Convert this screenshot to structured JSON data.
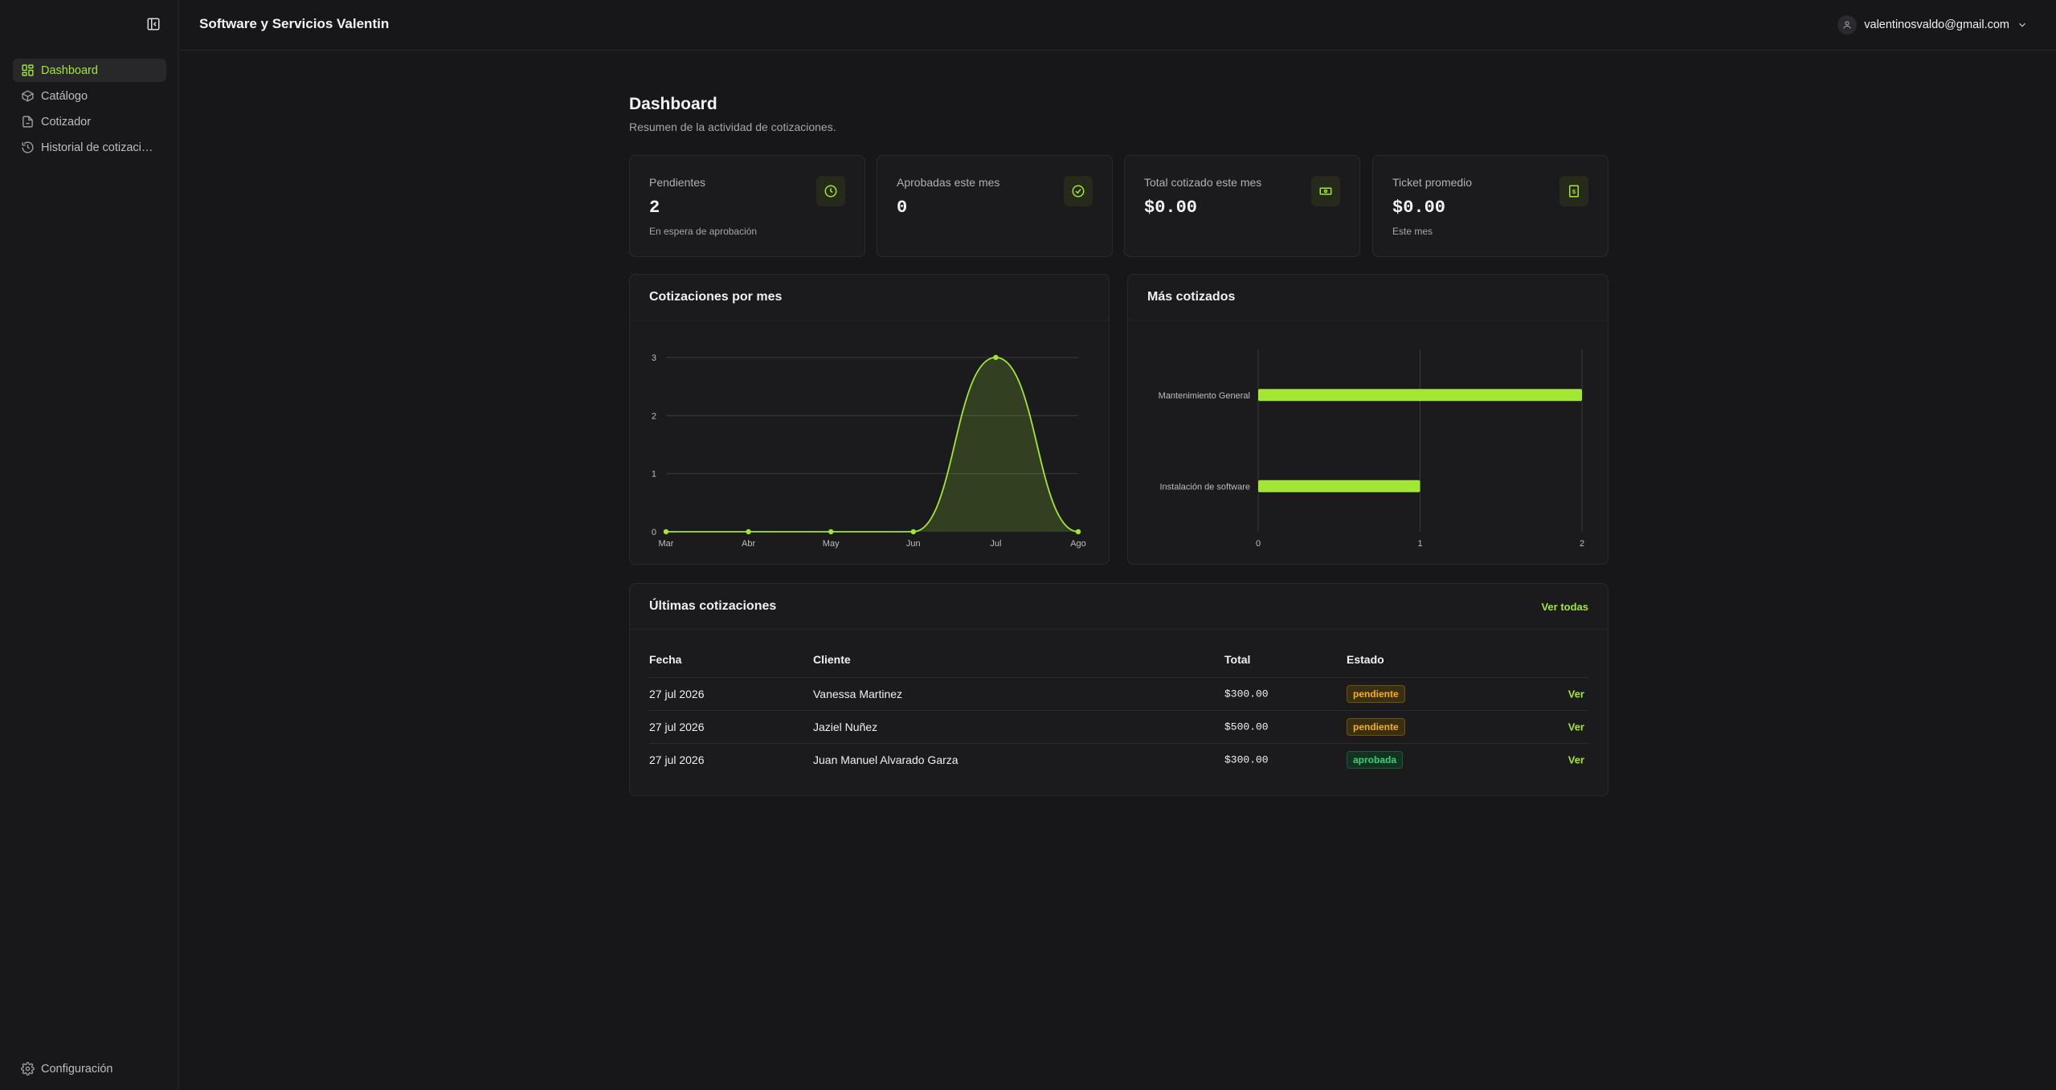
{
  "app": {
    "company": "Software y Servicios Valentin",
    "user_email": "valentinosvaldo@gmail.com"
  },
  "sidebar": {
    "items": [
      {
        "label": "Dashboard",
        "icon": "dashboard-icon",
        "active": true
      },
      {
        "label": "Catálogo",
        "icon": "box-icon"
      },
      {
        "label": "Cotizador",
        "icon": "file-plus-icon"
      },
      {
        "label": "Historial de cotizaci…",
        "icon": "history-icon"
      }
    ],
    "settings_label": "Configuración"
  },
  "page": {
    "title": "Dashboard",
    "subtitle": "Resumen de la actividad de cotizaciones."
  },
  "stats": [
    {
      "label": "Pendientes",
      "value": "2",
      "hint": "En espera de aprobación",
      "icon": "clock-icon"
    },
    {
      "label": "Aprobadas este mes",
      "value": "0",
      "hint": "",
      "icon": "check-circle-icon"
    },
    {
      "label": "Total cotizado este mes",
      "value": "$0.00",
      "hint": "",
      "icon": "banknote-icon"
    },
    {
      "label": "Ticket promedio",
      "value": "$0.00",
      "hint": "Este mes",
      "icon": "receipt-icon"
    }
  ],
  "accent_color": "#a3e635",
  "chart_data": [
    {
      "type": "area",
      "title": "Cotizaciones por mes",
      "categories": [
        "Mar",
        "Abr",
        "May",
        "Jun",
        "Jul",
        "Ago"
      ],
      "values": [
        0,
        0,
        0,
        0,
        3,
        0
      ],
      "ylim": [
        0,
        3
      ],
      "yticks": [
        0,
        1,
        2,
        3
      ],
      "grid": true
    },
    {
      "type": "bar",
      "orientation": "horizontal",
      "title": "Más cotizados",
      "categories": [
        "Mantenimiento General",
        "Instalación de software"
      ],
      "values": [
        2,
        1
      ],
      "xlim": [
        0,
        2
      ],
      "xticks": [
        0,
        1,
        2
      ],
      "grid": true
    }
  ],
  "latest": {
    "title": "Últimas cotizaciones",
    "view_all": "Ver todas",
    "headers": {
      "fecha": "Fecha",
      "cliente": "Cliente",
      "total": "Total",
      "estado": "Estado"
    },
    "rows": [
      {
        "fecha": "27 jul 2026",
        "cliente": "Vanessa Martinez",
        "total": "$300.00",
        "estado": "pendiente",
        "action": "Ver"
      },
      {
        "fecha": "27 jul 2026",
        "cliente": "Jaziel Nuñez",
        "total": "$500.00",
        "estado": "pendiente",
        "action": "Ver"
      },
      {
        "fecha": "27 jul 2026",
        "cliente": "Juan Manuel Alvarado Garza",
        "total": "$300.00",
        "estado": "aprobada",
        "action": "Ver"
      }
    ]
  }
}
